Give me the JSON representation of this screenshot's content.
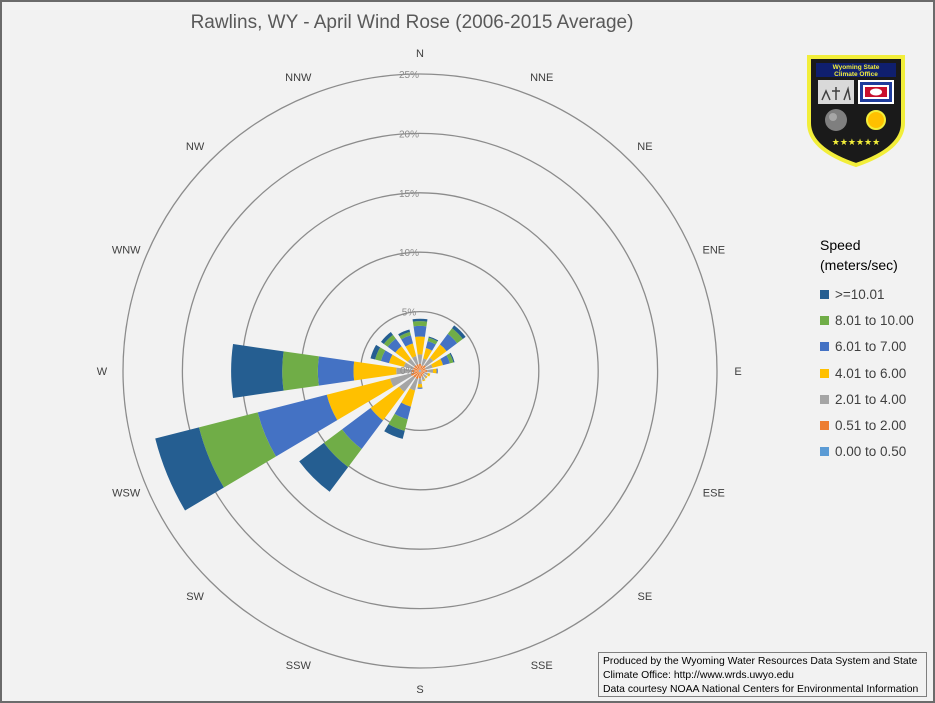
{
  "title": "Rawlins, WY - April Wind Rose (2006-2015 Average)",
  "legend": {
    "title_line1": "Speed",
    "title_line2": "(meters/sec)",
    "items": [
      {
        "label": ">=10.01",
        "color": "#255e91"
      },
      {
        "label": "8.01 to 10.00",
        "color": "#70ad47"
      },
      {
        "label": "6.01 to 7.00",
        "color": "#4472c4"
      },
      {
        "label": "4.01 to 6.00",
        "color": "#ffc000"
      },
      {
        "label": "2.01 to 4.00",
        "color": "#a5a5a5"
      },
      {
        "label": "0.51 to 2.00",
        "color": "#ed7d31"
      },
      {
        "label": "0.00 to 0.50",
        "color": "#5b9bd5"
      }
    ]
  },
  "credits": {
    "line1": "Produced by the Wyoming Water Resources Data System and State",
    "line2": "Climate Office: http://www.wrds.uwyo.edu",
    "line3": "Data courtesy NOAA National Centers for Environmental Information"
  },
  "badge": {
    "text_line1": "Wyoming State",
    "text_line2": "Climate Office",
    "stars": "★★★★★★"
  },
  "chart_data": {
    "type": "radar-stacked-bar",
    "title": "Rawlins, WY - April Wind Rose (2006-2015 Average)",
    "directions": [
      "N",
      "NNE",
      "NE",
      "ENE",
      "E",
      "ESE",
      "SE",
      "SSE",
      "S",
      "SSW",
      "SW",
      "WSW",
      "W",
      "WNW",
      "NW",
      "NNW"
    ],
    "ring_labels": [
      "5%",
      "10%",
      "15%",
      "20%",
      "25%"
    ],
    "rmax": 25,
    "speed_bins": [
      "0.00 to 0.50",
      "0.51 to 2.00",
      "2.01 to 4.00",
      "4.01 to 6.00",
      "6.01 to 7.00",
      "8.01 to 10.00",
      ">=10.01"
    ],
    "bin_colors": [
      "#5b9bd5",
      "#ed7d31",
      "#a5a5a5",
      "#ffc000",
      "#4472c4",
      "#70ad47",
      "#255e91"
    ],
    "values_percent": [
      [
        0.1,
        0.5,
        0.8,
        1.5,
        0.9,
        0.4,
        0.2
      ],
      [
        0.1,
        0.4,
        0.6,
        0.9,
        0.6,
        0.3,
        0.1
      ],
      [
        0.1,
        0.5,
        0.8,
        1.4,
        1.1,
        0.6,
        0.3
      ],
      [
        0.1,
        0.4,
        0.6,
        0.9,
        0.6,
        0.3,
        0.1
      ],
      [
        0.1,
        0.5,
        0.5,
        0.3,
        0.1,
        0.0,
        0.0
      ],
      [
        0.1,
        0.3,
        0.3,
        0.2,
        0.0,
        0.0,
        0.0
      ],
      [
        0.1,
        0.3,
        0.3,
        0.1,
        0.0,
        0.0,
        0.0
      ],
      [
        0.1,
        0.4,
        0.3,
        0.1,
        0.0,
        0.0,
        0.0
      ],
      [
        0.1,
        0.5,
        0.5,
        0.3,
        0.1,
        0.0,
        0.0
      ],
      [
        0.1,
        0.6,
        1.0,
        1.4,
        1.1,
        1.0,
        0.7
      ],
      [
        0.1,
        0.6,
        1.5,
        3.0,
        3.0,
        1.9,
        2.6
      ],
      [
        0.1,
        0.7,
        1.8,
        5.5,
        6.0,
        5.1,
        3.8
      ],
      [
        0.1,
        0.6,
        1.3,
        3.6,
        3.0,
        3.0,
        4.3
      ],
      [
        0.1,
        0.5,
        0.8,
        1.3,
        0.7,
        0.5,
        0.4
      ],
      [
        0.1,
        0.5,
        0.7,
        1.3,
        0.8,
        0.4,
        0.3
      ],
      [
        0.1,
        0.5,
        0.7,
        1.1,
        0.7,
        0.3,
        0.2
      ]
    ]
  }
}
